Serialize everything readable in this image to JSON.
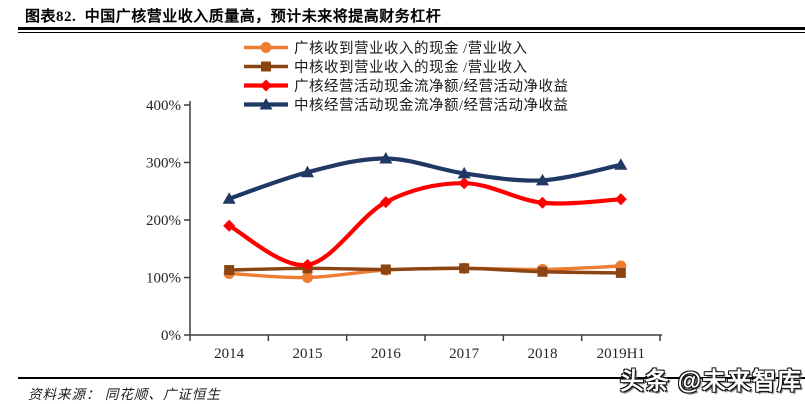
{
  "title": "图表82.  中国广核营业收入质量高，预计未来将提高财务杠杆",
  "source": "资料来源： 同花顺、广证恒生",
  "watermark": "头条 @未来智库",
  "colors": {
    "guanghe_cash_ratio": "#ED7D31",
    "zhonghe_cash_ratio": "#8B4513",
    "guanghe_ocf_ratio": "#FF0000",
    "zhonghe_ocf_ratio": "#1F3864",
    "axis": "#3F3F3F",
    "rule": "#000000"
  },
  "chart_data": {
    "type": "line",
    "title": "中国广核营业收入质量高，预计未来将提高财务杠杆",
    "xlabel": "",
    "ylabel": "",
    "categories": [
      "2014",
      "2015",
      "2016",
      "2017",
      "2018",
      "2019H1"
    ],
    "series": [
      {
        "name": "广核收到营业收入的现金 /营业收入",
        "color": "#ED7D31",
        "marker": "circle",
        "values": [
          107,
          100,
          113,
          116,
          114,
          120
        ]
      },
      {
        "name": "中核收到营业收入的现金 /营业收入",
        "color": "#8B4513",
        "marker": "square",
        "values": [
          113,
          116,
          114,
          116,
          110,
          108
        ]
      },
      {
        "name": "广核经营活动现金流净额/经营活动净收益",
        "color": "#FF0000",
        "marker": "diamond",
        "values": [
          190,
          122,
          231,
          264,
          230,
          236
        ]
      },
      {
        "name": "中核经营活动现金流净额/经营活动净收益",
        "color": "#1F3864",
        "marker": "triangle",
        "values": [
          237,
          283,
          307,
          281,
          269,
          296
        ]
      }
    ],
    "ylim": [
      0,
      400
    ],
    "ytick_step": 100,
    "ytick_labels": [
      "0%",
      "100%",
      "200%",
      "300%",
      "400%"
    ],
    "grid": false,
    "legend_position": "top",
    "line_smoothing": true
  }
}
